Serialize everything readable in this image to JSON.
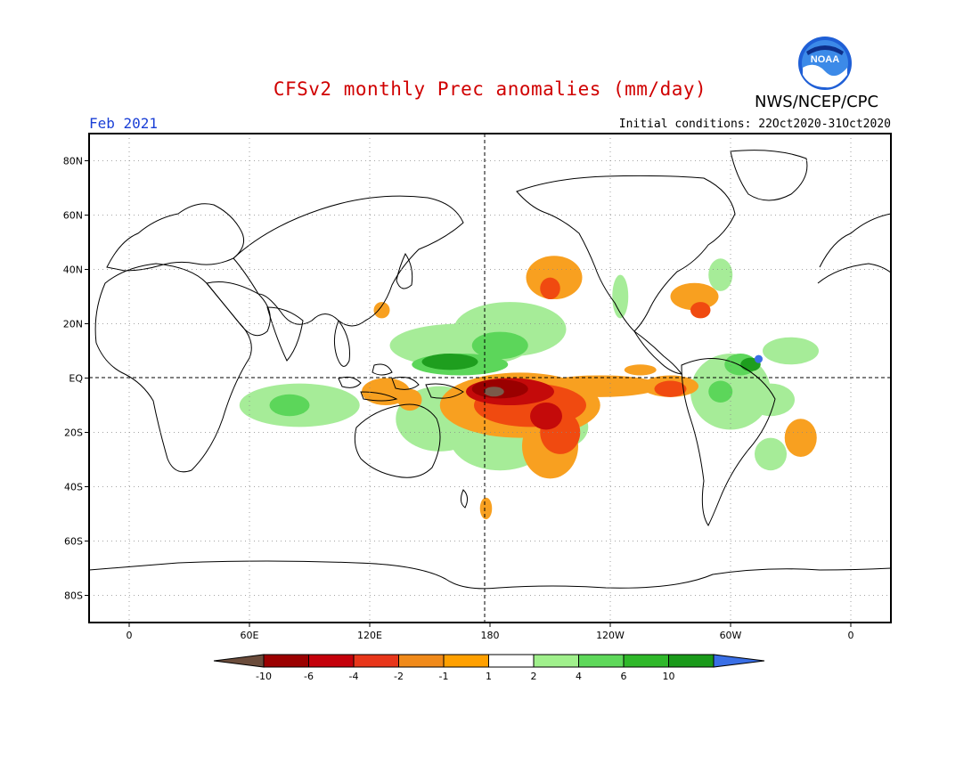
{
  "header": {
    "title": "CFSv2 monthly Prec anomalies (mm/day)",
    "agency": "NWS/NCEP/CPC",
    "month": "Feb 2021",
    "initial_conditions": "Initial conditions: 22Oct2020-31Oct2020",
    "logo_text": "NOAA"
  },
  "map": {
    "lat_labels": [
      "80N",
      "60N",
      "40N",
      "20N",
      "EQ",
      "20S",
      "40S",
      "60S",
      "80S"
    ],
    "lat_values": [
      80,
      60,
      40,
      20,
      0,
      -20,
      -40,
      -60,
      -80
    ],
    "lon_labels": [
      "0",
      "60E",
      "120E",
      "180",
      "120W",
      "60W",
      "0"
    ],
    "lon_values": [
      0,
      60,
      120,
      180,
      240,
      300,
      360
    ],
    "lon_range": [
      -20,
      380
    ],
    "lat_range": [
      -90,
      90
    ]
  },
  "colorbar": {
    "tick_labels": [
      "-10",
      "-6",
      "-4",
      "-2",
      "-1",
      "1",
      "2",
      "4",
      "6",
      "10"
    ],
    "colors": [
      "#6b4c3b",
      "#9b0000",
      "#c4000a",
      "#e8361a",
      "#f08a1a",
      "#ffa000",
      "#ffffff",
      "#a0f08c",
      "#5ed85a",
      "#2fb82a",
      "#1a9a1a",
      "#3a6fe6"
    ]
  },
  "colors": {
    "neg_orange": "#f8a020",
    "neg_redorange": "#f04a10",
    "neg_red": "#c40a0a",
    "neg_darkred": "#9a0000",
    "neg_brown": "#7a5a4a",
    "pos_light": "#a6ec98",
    "pos_mid": "#5cd65a",
    "pos_dark": "#1e9e1e",
    "pos_blue": "#3a6fe6"
  }
}
